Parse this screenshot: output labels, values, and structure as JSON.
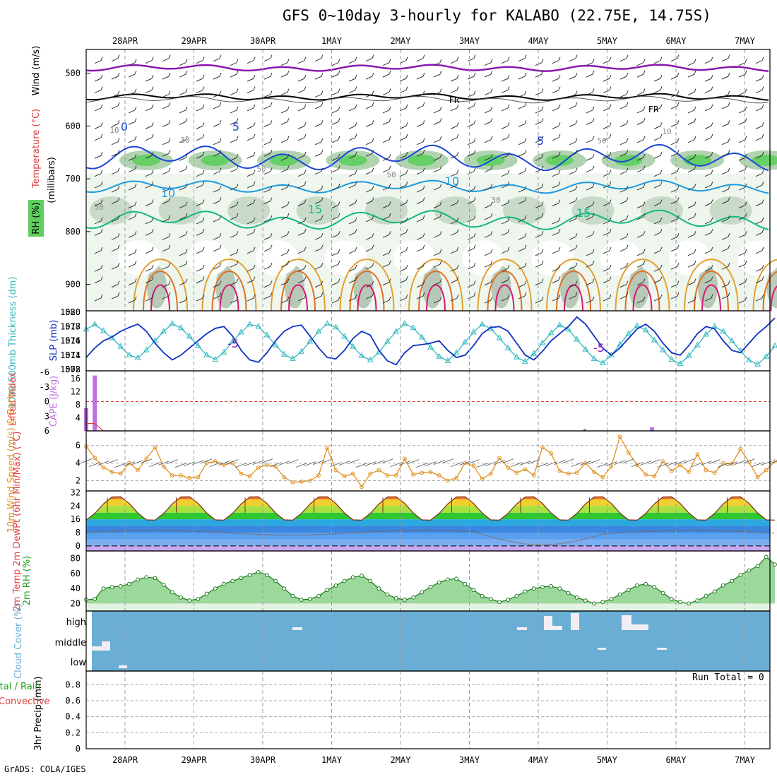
{
  "title": "GFS 0~10day 3-hourly for KALABO (22.75E, 14.75S)",
  "credit": "GrADS: COLA/IGES",
  "run_total": "Run Total = 0",
  "colors": {
    "temperature_label": "#e04040",
    "wind_label": "#000000",
    "rh_label": "#20a020",
    "thickness": "#30b8c0",
    "slp": "#1030c0",
    "cape": "#c070e0",
    "lifted_index": "#e04040",
    "wind10m": "#e09020",
    "cloud_bg": "#6aaed6",
    "precip_label": "#000000"
  },
  "chart_data": [
    {
      "panel": "upper-air",
      "type": "heatmap",
      "x": [
        "28APR",
        "29APR",
        "30APR",
        "1MAY",
        "2MAY",
        "3MAY",
        "4MAY",
        "5MAY",
        "6MAY",
        "7MAY"
      ],
      "yticks": [
        500,
        600,
        700,
        800,
        900
      ],
      "ylabel": "(millibars)",
      "vlabels": {
        "wind": "Wind (m/s)",
        "temperature": "Temperature (°C)",
        "rh": "RH (%)"
      },
      "contour_labels": {
        "temperature": [
          "-5",
          "-5",
          "0",
          "5",
          "5",
          "10",
          "10",
          "15",
          "15"
        ],
        "freezing": [
          "FR",
          "FR"
        ],
        "rh": [
          "10",
          "10",
          "30",
          "30",
          "50",
          "50",
          "50",
          "50"
        ]
      }
    },
    {
      "panel": "thickness-slp",
      "type": "line",
      "left_label": "1000-500mb Thickness (dm)",
      "right_label": "SLP (mb)",
      "left_ticks": [
        572,
        574,
        576,
        578,
        580
      ],
      "right_ticks": [
        1008,
        1011,
        1014,
        1017,
        1020
      ],
      "series": [
        {
          "name": "Thickness",
          "axis": "left",
          "values": [
            577.6,
            578.3,
            577.4,
            576.4,
            575.2,
            574.0,
            573.6,
            574.7,
            576.0,
            577.3,
            578.4,
            577.8,
            576.6,
            575.3,
            574.0,
            573.4,
            574.4,
            575.9,
            577.2,
            578.3,
            578.0,
            576.8,
            575.4,
            574.1,
            573.5,
            574.5,
            575.9,
            577.3,
            578.4,
            577.9,
            576.6,
            575.2,
            573.9,
            573.3,
            574.4,
            575.9,
            577.3,
            578.4,
            577.8,
            576.5,
            575.1,
            573.8,
            573.2,
            574.3,
            575.8,
            577.2,
            578.3,
            577.7,
            576.4,
            575.0,
            573.7,
            573.1,
            574.2,
            575.7,
            577.1,
            578.2,
            577.6,
            576.2,
            574.8,
            573.5,
            572.9,
            574.0,
            575.5,
            577.0,
            578.1,
            577.5,
            576.1,
            574.7,
            573.4,
            572.8,
            573.9,
            575.4,
            576.9,
            578.0,
            577.3,
            576.0,
            574.6,
            573.3,
            572.7,
            573.8,
            575.3
          ]
        },
        {
          "name": "SLP",
          "axis": "right",
          "values": [
            1010.5,
            1012.5,
            1014.0,
            1014.8,
            1016.0,
            1016.8,
            1017.5,
            1016.0,
            1013.5,
            1011.5,
            1010.0,
            1011.0,
            1012.5,
            1014.0,
            1015.5,
            1016.6,
            1017.0,
            1015.0,
            1012.0,
            1010.0,
            1009.5,
            1011.5,
            1014.0,
            1016.0,
            1017.0,
            1017.3,
            1015.0,
            1012.5,
            1010.5,
            1010.2,
            1012.0,
            1014.5,
            1016.0,
            1015.2,
            1012.0,
            1009.8,
            1009.0,
            1011.5,
            1013.0,
            1013.2,
            1013.5,
            1014.0,
            1012.0,
            1010.5,
            1011.0,
            1013.0,
            1015.5,
            1016.8,
            1017.0,
            1016.0,
            1013.5,
            1011.0,
            1010.0,
            1011.8,
            1014.0,
            1015.5,
            1017.0,
            1019.0,
            1017.5,
            1015.0,
            1012.5,
            1011.0,
            1012.5,
            1014.5,
            1016.5,
            1017.5,
            1016.0,
            1013.5,
            1011.5,
            1011.0,
            1013.0,
            1015.5,
            1017.0,
            1016.5,
            1014.0,
            1012.0,
            1011.5,
            1013.5,
            1015.5,
            1017.0,
            1018.8
          ]
        }
      ]
    },
    {
      "panel": "li-cape",
      "type": "bar",
      "left_label": "Lifted Index",
      "right_label": "CAPE (J/kg)",
      "left_ticks": [
        "-6",
        "-3",
        "0",
        "3",
        "6"
      ],
      "right_ticks": [
        4,
        8,
        12,
        16
      ],
      "series": [
        {
          "name": "CAPE",
          "values": [
            7,
            17,
            0,
            0,
            0
          ]
        },
        {
          "name": "Lifted Index",
          "values": [
            4.5,
            4.5,
            6,
            6,
            6
          ]
        }
      ]
    },
    {
      "panel": "wind10m",
      "type": "line",
      "label": "10m Wind Speed (m/s) & Barbs",
      "yticks": [
        2,
        4,
        6
      ],
      "series": [
        {
          "name": "10m Wind Speed",
          "values": [
            5.9,
            4.6,
            3.5,
            3.0,
            2.8,
            4.0,
            3.2,
            4.5,
            5.8,
            3.6,
            2.6,
            2.6,
            2.3,
            2.4,
            4.0,
            4.2,
            3.8,
            4.0,
            2.8,
            2.5,
            3.5,
            3.8,
            3.6,
            2.4,
            1.8,
            1.9,
            2.0,
            2.6,
            5.7,
            3.2,
            2.5,
            2.8,
            1.3,
            2.8,
            3.2,
            2.6,
            2.6,
            4.5,
            2.7,
            2.9,
            3.0,
            2.6,
            2.0,
            2.3,
            4.0,
            3.7,
            2.2,
            2.8,
            4.6,
            3.5,
            2.9,
            3.3,
            2.6,
            5.8,
            5.1,
            3.1,
            2.8,
            2.9,
            4.0,
            3.0,
            2.4,
            3.6,
            7.0,
            5.2,
            3.8,
            2.7,
            2.5,
            4.2,
            3.1,
            3.8,
            3.0,
            5.0,
            3.2,
            2.9,
            4.0,
            3.9,
            5.6,
            4.1,
            2.4,
            3.2,
            4.2
          ]
        }
      ]
    },
    {
      "panel": "temp2m",
      "type": "area",
      "label": "2m Temp 2m DewPt (6hr Min/Max) (°C)",
      "yticks": [
        0,
        8,
        16,
        24,
        32
      ],
      "series": [
        {
          "name": "2m Temp",
          "pattern": "diurnal",
          "max": 30,
          "min": 15
        },
        {
          "name": "2m DewPt",
          "pattern": "slow",
          "range": [
            -1,
            10
          ]
        }
      ]
    },
    {
      "panel": "rh2m",
      "type": "area",
      "label": "2m RH (%)",
      "yticks": [
        20,
        40,
        60,
        80
      ],
      "series": [
        {
          "name": "2m RH",
          "values": [
            25,
            26,
            40,
            42,
            43,
            46,
            52,
            55,
            54,
            45,
            35,
            28,
            24,
            26,
            33,
            40,
            46,
            50,
            54,
            58,
            62,
            58,
            50,
            40,
            30,
            25,
            26,
            30,
            38,
            44,
            50,
            55,
            57,
            50,
            40,
            32,
            27,
            25,
            28,
            35,
            42,
            48,
            52,
            53,
            46,
            38,
            30,
            26,
            22,
            25,
            30,
            36,
            40,
            42,
            43,
            40,
            34,
            28,
            24,
            20,
            22,
            26,
            32,
            38,
            44,
            46,
            42,
            34,
            26,
            22,
            20,
            24,
            30,
            36,
            44,
            50,
            58,
            64,
            70,
            82,
            72
          ]
        }
      ]
    },
    {
      "panel": "cloud",
      "type": "bar",
      "label": "Cloud Cover (%)",
      "yticks": [
        "low",
        "middle",
        "high"
      ]
    },
    {
      "panel": "precip",
      "type": "bar",
      "label": "3hr Precip (mm)",
      "label_left": "Total / Rain",
      "label_left2": "Convective",
      "yticks": [
        "0",
        "0.2",
        "0.4",
        "0.6",
        "0.8"
      ],
      "values": []
    }
  ]
}
